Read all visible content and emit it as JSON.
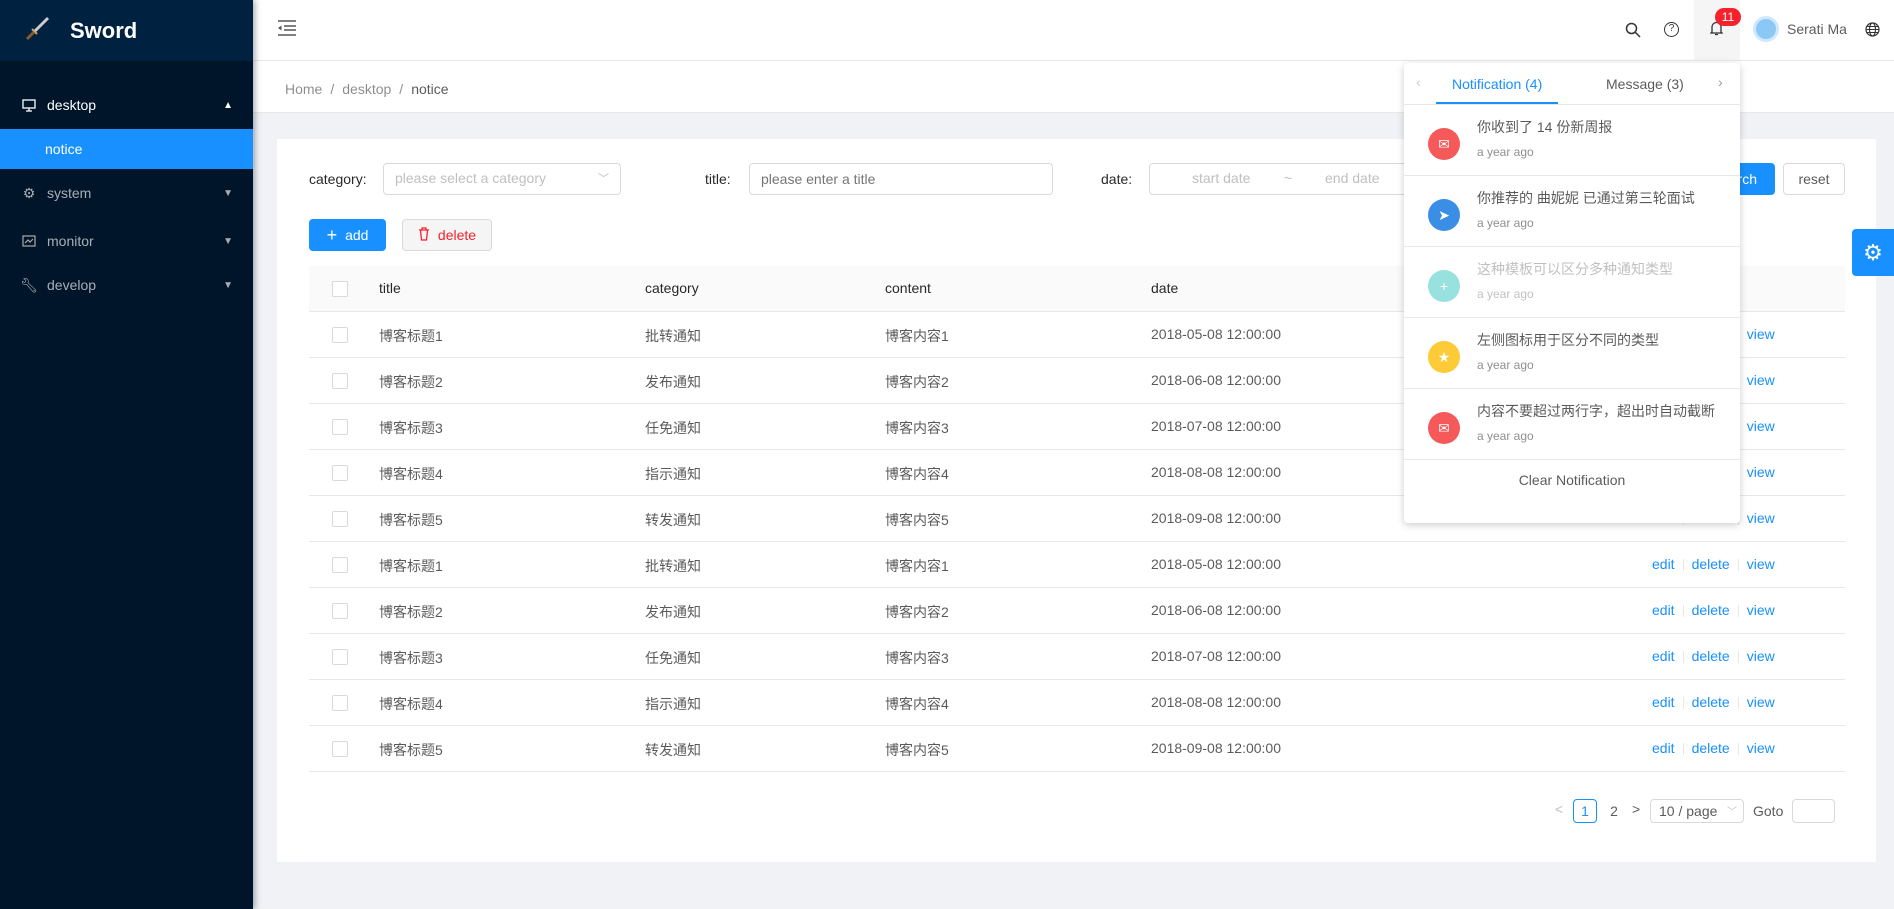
{
  "app": {
    "name": "Sword"
  },
  "sidebar": {
    "items": [
      {
        "label": "desktop",
        "icon": "desktop-icon",
        "expanded": true,
        "children": [
          {
            "label": "notice",
            "selected": true
          }
        ]
      },
      {
        "label": "system",
        "icon": "gear-icon"
      },
      {
        "label": "monitor",
        "icon": "line-chart-icon"
      },
      {
        "label": "develop",
        "icon": "wrench-icon"
      }
    ]
  },
  "header": {
    "notification_count": "11",
    "user_name": "Serati Ma"
  },
  "breadcrumb": [
    "Home",
    "desktop",
    "notice"
  ],
  "breadcrumb_sep": "/",
  "filters": {
    "category_label": "category:",
    "category_placeholder": "please select a category",
    "title_label": "title:",
    "title_placeholder": "please enter a title",
    "date_label": "date:",
    "start_placeholder": "start date",
    "range_sep": "~",
    "end_placeholder": "end date",
    "search_label": "search",
    "reset_label": "reset"
  },
  "toolbar": {
    "add_label": "add",
    "delete_label": "delete"
  },
  "table": {
    "columns": [
      "title",
      "category",
      "content",
      "date"
    ],
    "rows": [
      [
        "博客标题1",
        "批转通知",
        "博客内容1",
        "2018-05-08 12:00:00"
      ],
      [
        "博客标题2",
        "发布通知",
        "博客内容2",
        "2018-06-08 12:00:00"
      ],
      [
        "博客标题3",
        "任免通知",
        "博客内容3",
        "2018-07-08 12:00:00"
      ],
      [
        "博客标题4",
        "指示通知",
        "博客内容4",
        "2018-08-08 12:00:00"
      ],
      [
        "博客标题5",
        "转发通知",
        "博客内容5",
        "2018-09-08 12:00:00"
      ],
      [
        "博客标题1",
        "批转通知",
        "博客内容1",
        "2018-05-08 12:00:00"
      ],
      [
        "博客标题2",
        "发布通知",
        "博客内容2",
        "2018-06-08 12:00:00"
      ],
      [
        "博客标题3",
        "任免通知",
        "博客内容3",
        "2018-07-08 12:00:00"
      ],
      [
        "博客标题4",
        "指示通知",
        "博客内容4",
        "2018-08-08 12:00:00"
      ],
      [
        "博客标题5",
        "转发通知",
        "博客内容5",
        "2018-09-08 12:00:00"
      ]
    ],
    "actions": [
      "edit",
      "delete",
      "view"
    ]
  },
  "pagination": {
    "pages": [
      "1",
      "2"
    ],
    "current": "1",
    "page_size": "10 / page",
    "goto_label": "Goto"
  },
  "notifications": {
    "tabs": [
      "Notification (4)",
      "Message (3)"
    ],
    "active_tab": 0,
    "items": [
      {
        "title": "你收到了 14 份新周报",
        "time": "a year ago",
        "icon": "mail-icon",
        "color": "#f5595a",
        "read": false
      },
      {
        "title": "你推荐的 曲妮妮 已通过第三轮面试",
        "time": "a year ago",
        "icon": "send-icon",
        "color": "#3a8ee6",
        "read": false
      },
      {
        "title": "这种模板可以区分多种通知类型",
        "time": "a year ago",
        "icon": "plus-icon",
        "color": "#34c5c0",
        "read": true
      },
      {
        "title": "左侧图标用于区分不同的类型",
        "time": "a year ago",
        "icon": "star-icon",
        "color": "#fdcb37",
        "read": false
      },
      {
        "title": "内容不要超过两行字，超出时自动截断",
        "time": "a year ago",
        "icon": "mail-icon",
        "color": "#f5595a",
        "read": false
      }
    ],
    "clear_label": "Clear Notification"
  },
  "colors": {
    "primary": "#1890ff",
    "sidebar": "#001529",
    "danger": "#f5222d"
  }
}
